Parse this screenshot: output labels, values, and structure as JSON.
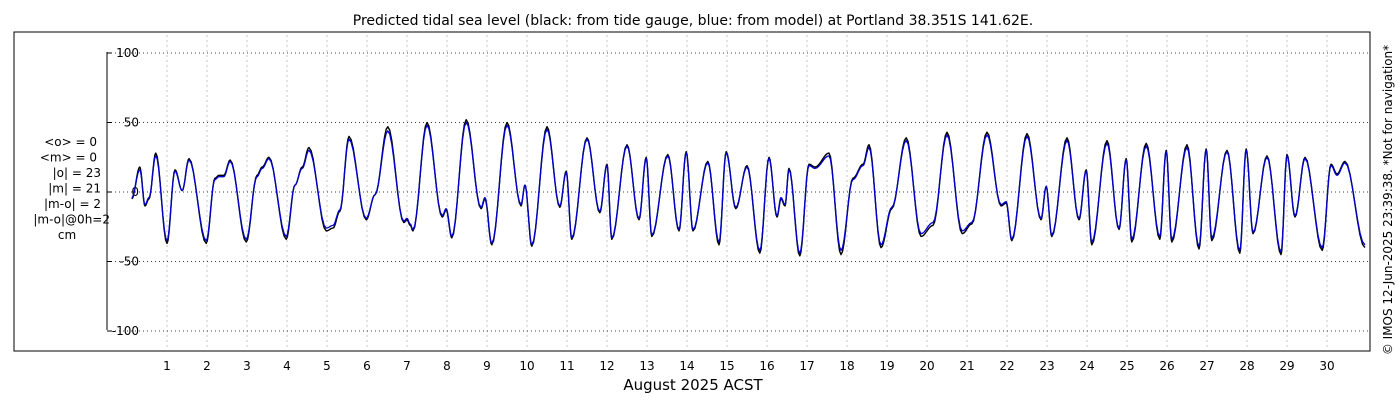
{
  "chart_data": {
    "type": "line",
    "title": "Predicted tidal sea level (black: from tide gauge, blue: from model) at Portland 38.351S 141.62E.",
    "xlabel": "August 2025 ACST",
    "ylabel": "",
    "xlim": [
      0,
      31
    ],
    "ylim": [
      -105,
      105
    ],
    "yticks": [
      100,
      50,
      0,
      -50,
      -100
    ],
    "yticklabels": [
      "100",
      "50",
      "0",
      "-50",
      "-100"
    ],
    "xticks": [
      1,
      2,
      3,
      4,
      5,
      6,
      7,
      8,
      9,
      10,
      11,
      12,
      13,
      14,
      15,
      16,
      17,
      18,
      19,
      20,
      21,
      22,
      23,
      24,
      25,
      26,
      27,
      28,
      29,
      30
    ],
    "xticklabels": [
      "1",
      "2",
      "3",
      "4",
      "5",
      "6",
      "7",
      "8",
      "9",
      "10",
      "11",
      "12",
      "13",
      "14",
      "15",
      "16",
      "17",
      "18",
      "19",
      "20",
      "21",
      "22",
      "23",
      "24",
      "25",
      "26",
      "27",
      "28",
      "29",
      "30"
    ],
    "grid": true,
    "stats": [
      "<o> = 0",
      "<m> = 0",
      "|o| = 23",
      "|m| = 21",
      "|m-o| = 2",
      "|m-o|@0h=2",
      "cm"
    ],
    "side_note": "© IMOS 12-Jun-2025 23:39:38. *Not for navigation*",
    "series": [
      {
        "color": "#000000",
        "extrema": [
          [
            0.12,
            -5
          ],
          [
            0.32,
            18
          ],
          [
            0.45,
            -10
          ],
          [
            0.55,
            -5
          ],
          [
            0.72,
            28
          ],
          [
            1.0,
            -37
          ],
          [
            1.2,
            16
          ],
          [
            1.38,
            1
          ],
          [
            1.55,
            24
          ],
          [
            1.98,
            -37
          ],
          [
            2.2,
            10
          ],
          [
            2.3,
            12
          ],
          [
            2.42,
            12
          ],
          [
            2.58,
            23
          ],
          [
            2.98,
            -36
          ],
          [
            3.25,
            12
          ],
          [
            3.38,
            18
          ],
          [
            3.55,
            25
          ],
          [
            3.98,
            -34
          ],
          [
            4.2,
            5
          ],
          [
            4.38,
            18
          ],
          [
            4.55,
            32
          ],
          [
            4.98,
            -28
          ],
          [
            5.15,
            -26
          ],
          [
            5.32,
            -14
          ],
          [
            5.55,
            40
          ],
          [
            5.98,
            -20
          ],
          [
            6.2,
            -2
          ],
          [
            6.52,
            47
          ],
          [
            6.92,
            -22
          ],
          [
            7.0,
            -20
          ],
          [
            7.08,
            -24
          ],
          [
            7.15,
            -28
          ],
          [
            7.5,
            50
          ],
          [
            7.88,
            -18
          ],
          [
            7.98,
            -13
          ],
          [
            8.12,
            -33
          ],
          [
            8.48,
            52
          ],
          [
            8.85,
            -12
          ],
          [
            8.95,
            -5
          ],
          [
            9.12,
            -38
          ],
          [
            9.5,
            50
          ],
          [
            9.85,
            -10
          ],
          [
            9.95,
            5
          ],
          [
            10.12,
            -39
          ],
          [
            10.5,
            47
          ],
          [
            10.82,
            -11
          ],
          [
            10.98,
            15
          ],
          [
            11.12,
            -34
          ],
          [
            11.5,
            39
          ],
          [
            11.82,
            -15
          ],
          [
            12.0,
            20
          ],
          [
            12.12,
            -34
          ],
          [
            12.5,
            34
          ],
          [
            12.8,
            -20
          ],
          [
            12.98,
            25
          ],
          [
            13.12,
            -32
          ],
          [
            13.52,
            27
          ],
          [
            13.8,
            -28
          ],
          [
            13.98,
            29
          ],
          [
            14.15,
            -28
          ],
          [
            14.52,
            22
          ],
          [
            14.8,
            -38
          ],
          [
            14.98,
            29
          ],
          [
            15.22,
            -12
          ],
          [
            15.5,
            19
          ],
          [
            15.82,
            -44
          ],
          [
            16.05,
            25
          ],
          [
            16.25,
            -18
          ],
          [
            16.35,
            -5
          ],
          [
            16.45,
            -10
          ],
          [
            16.55,
            17
          ],
          [
            16.82,
            -46
          ],
          [
            17.05,
            20
          ],
          [
            17.2,
            18
          ],
          [
            17.55,
            28
          ],
          [
            17.85,
            -45
          ],
          [
            18.15,
            10
          ],
          [
            18.4,
            20
          ],
          [
            18.55,
            34
          ],
          [
            18.85,
            -40
          ],
          [
            19.12,
            -12
          ],
          [
            19.48,
            39
          ],
          [
            19.85,
            -32
          ],
          [
            20.15,
            -24
          ],
          [
            20.5,
            43
          ],
          [
            20.88,
            -30
          ],
          [
            21.12,
            -23
          ],
          [
            21.5,
            43
          ],
          [
            21.85,
            -10
          ],
          [
            21.98,
            -8
          ],
          [
            22.12,
            -35
          ],
          [
            22.5,
            42
          ],
          [
            22.85,
            -20
          ],
          [
            22.98,
            4
          ],
          [
            23.12,
            -32
          ],
          [
            23.5,
            39
          ],
          [
            23.8,
            -20
          ],
          [
            23.98,
            16
          ],
          [
            24.12,
            -38
          ],
          [
            24.5,
            37
          ],
          [
            24.8,
            -27
          ],
          [
            24.98,
            24
          ],
          [
            25.12,
            -36
          ],
          [
            25.48,
            35
          ],
          [
            25.82,
            -34
          ],
          [
            25.98,
            30
          ],
          [
            26.12,
            -36
          ],
          [
            26.5,
            34
          ],
          [
            26.8,
            -41
          ],
          [
            26.98,
            31
          ],
          [
            27.12,
            -35
          ],
          [
            27.5,
            30
          ],
          [
            27.82,
            -44
          ],
          [
            27.98,
            31
          ],
          [
            28.15,
            -30
          ],
          [
            28.5,
            26
          ],
          [
            28.85,
            -45
          ],
          [
            29.0,
            27
          ],
          [
            29.2,
            -18
          ],
          [
            29.45,
            25
          ],
          [
            29.88,
            -42
          ],
          [
            30.1,
            20
          ],
          [
            30.25,
            13
          ],
          [
            30.45,
            22
          ],
          [
            30.95,
            -40
          ]
        ]
      },
      {
        "color": "#0000cc",
        "extrema": [
          [
            0.12,
            -4
          ],
          [
            0.32,
            16
          ],
          [
            0.45,
            -9
          ],
          [
            0.55,
            -4
          ],
          [
            0.72,
            26
          ],
          [
            1.0,
            -35
          ],
          [
            1.2,
            15
          ],
          [
            1.38,
            1
          ],
          [
            1.55,
            23
          ],
          [
            1.98,
            -35
          ],
          [
            2.2,
            9
          ],
          [
            2.3,
            11
          ],
          [
            2.42,
            11
          ],
          [
            2.58,
            22
          ],
          [
            2.98,
            -34
          ],
          [
            3.25,
            11
          ],
          [
            3.38,
            17
          ],
          [
            3.55,
            24
          ],
          [
            3.98,
            -32
          ],
          [
            4.2,
            5
          ],
          [
            4.38,
            17
          ],
          [
            4.55,
            30
          ],
          [
            4.98,
            -26
          ],
          [
            5.15,
            -24
          ],
          [
            5.32,
            -13
          ],
          [
            5.55,
            38
          ],
          [
            5.98,
            -19
          ],
          [
            6.2,
            -2
          ],
          [
            6.52,
            44
          ],
          [
            6.92,
            -21
          ],
          [
            7.0,
            -19
          ],
          [
            7.08,
            -23
          ],
          [
            7.15,
            -27
          ],
          [
            7.5,
            48
          ],
          [
            7.88,
            -17
          ],
          [
            7.98,
            -12
          ],
          [
            8.12,
            -32
          ],
          [
            8.48,
            50
          ],
          [
            8.85,
            -11
          ],
          [
            8.95,
            -4
          ],
          [
            9.12,
            -37
          ],
          [
            9.5,
            48
          ],
          [
            9.85,
            -9
          ],
          [
            9.95,
            5
          ],
          [
            10.12,
            -38
          ],
          [
            10.5,
            45
          ],
          [
            10.82,
            -10
          ],
          [
            10.98,
            14
          ],
          [
            11.12,
            -33
          ],
          [
            11.5,
            38
          ],
          [
            11.82,
            -14
          ],
          [
            12.0,
            19
          ],
          [
            12.12,
            -33
          ],
          [
            12.5,
            33
          ],
          [
            12.8,
            -19
          ],
          [
            12.98,
            24
          ],
          [
            13.12,
            -31
          ],
          [
            13.52,
            26
          ],
          [
            13.8,
            -27
          ],
          [
            13.98,
            28
          ],
          [
            14.15,
            -27
          ],
          [
            14.52,
            21
          ],
          [
            14.8,
            -36
          ],
          [
            14.98,
            28
          ],
          [
            15.22,
            -11
          ],
          [
            15.5,
            18
          ],
          [
            15.82,
            -42
          ],
          [
            16.05,
            24
          ],
          [
            16.25,
            -17
          ],
          [
            16.35,
            -4
          ],
          [
            16.45,
            -9
          ],
          [
            16.55,
            16
          ],
          [
            16.82,
            -44
          ],
          [
            17.05,
            19
          ],
          [
            17.2,
            17
          ],
          [
            17.55,
            26
          ],
          [
            17.85,
            -42
          ],
          [
            18.15,
            9
          ],
          [
            18.4,
            19
          ],
          [
            18.55,
            32
          ],
          [
            18.85,
            -38
          ],
          [
            19.12,
            -11
          ],
          [
            19.48,
            37
          ],
          [
            19.85,
            -30
          ],
          [
            20.15,
            -22
          ],
          [
            20.5,
            41
          ],
          [
            20.88,
            -28
          ],
          [
            21.12,
            -22
          ],
          [
            21.5,
            41
          ],
          [
            21.85,
            -9
          ],
          [
            21.98,
            -7
          ],
          [
            22.12,
            -34
          ],
          [
            22.5,
            40
          ],
          [
            22.85,
            -19
          ],
          [
            22.98,
            4
          ],
          [
            23.12,
            -31
          ],
          [
            23.5,
            37
          ],
          [
            23.8,
            -19
          ],
          [
            23.98,
            15
          ],
          [
            24.12,
            -36
          ],
          [
            24.5,
            35
          ],
          [
            24.8,
            -26
          ],
          [
            24.98,
            23
          ],
          [
            25.12,
            -34
          ],
          [
            25.48,
            33
          ],
          [
            25.82,
            -32
          ],
          [
            25.98,
            29
          ],
          [
            26.12,
            -34
          ],
          [
            26.5,
            32
          ],
          [
            26.8,
            -39
          ],
          [
            26.98,
            30
          ],
          [
            27.12,
            -33
          ],
          [
            27.5,
            29
          ],
          [
            27.82,
            -42
          ],
          [
            27.98,
            30
          ],
          [
            28.15,
            -29
          ],
          [
            28.5,
            25
          ],
          [
            28.85,
            -43
          ],
          [
            29.0,
            26
          ],
          [
            29.2,
            -17
          ],
          [
            29.45,
            24
          ],
          [
            29.88,
            -40
          ],
          [
            30.1,
            19
          ],
          [
            30.25,
            12
          ],
          [
            30.45,
            21
          ],
          [
            30.95,
            -38
          ]
        ]
      }
    ]
  }
}
